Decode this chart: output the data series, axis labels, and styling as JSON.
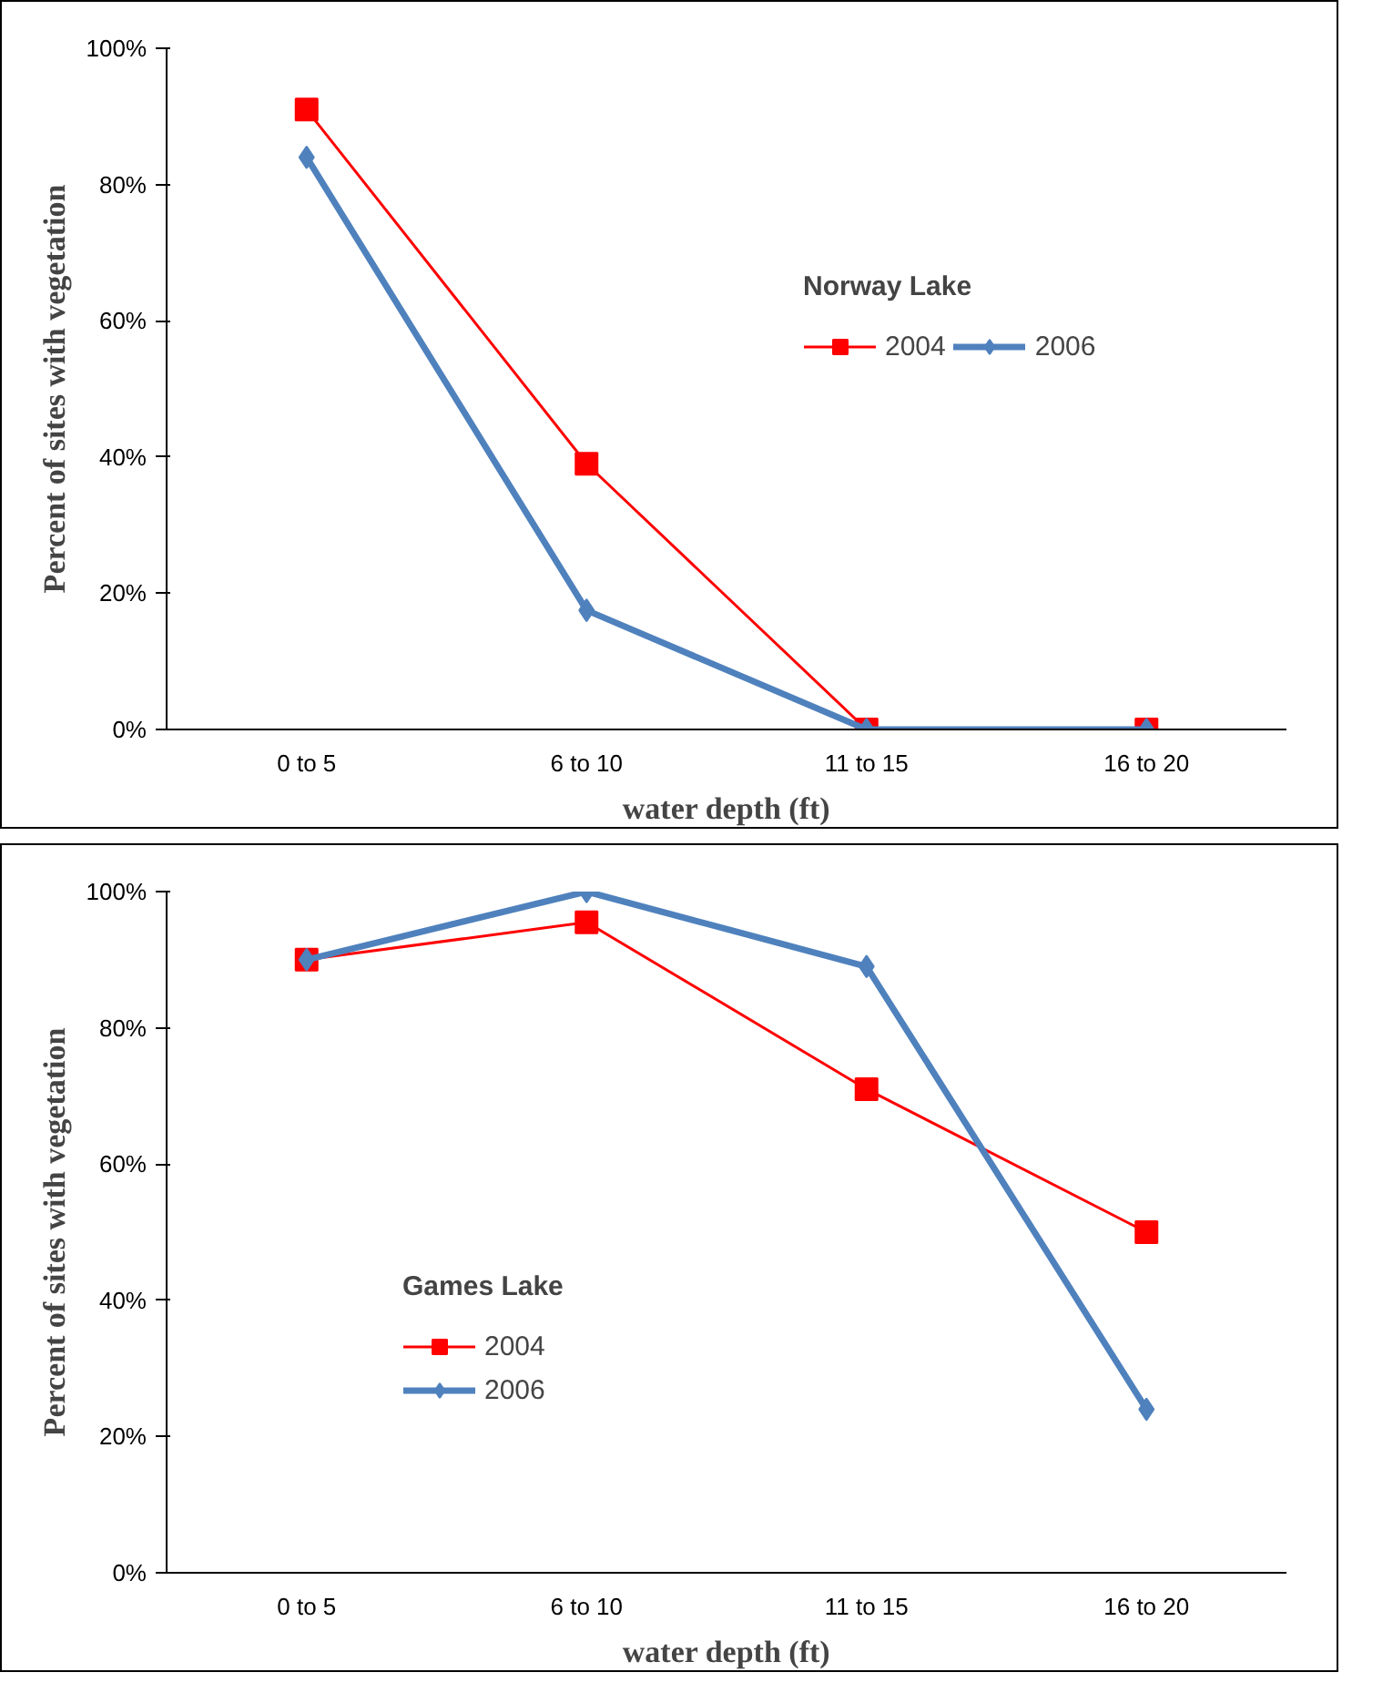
{
  "chart_data": [
    {
      "type": "line",
      "legend_title": "Norway Lake",
      "xlabel": "water depth (ft)",
      "ylabel": "Percent of sites with vegetation",
      "categories": [
        "0 to 5",
        "6 to 10",
        "11 to 15",
        "16 to 20"
      ],
      "series": [
        {
          "name": "2004",
          "color": "#ff0000",
          "marker": "square",
          "values": [
            91,
            39,
            0,
            0
          ]
        },
        {
          "name": "2006",
          "color": "#4f81bd",
          "marker": "diamond",
          "values": [
            84,
            17.5,
            0,
            0
          ]
        }
      ],
      "ylim": [
        0,
        100
      ],
      "yticks": [
        {
          "value": 0,
          "label": "0%"
        },
        {
          "value": 20,
          "label": "20%"
        },
        {
          "value": 40,
          "label": "40%"
        },
        {
          "value": 60,
          "label": "60%"
        },
        {
          "value": 80,
          "label": "80%"
        },
        {
          "value": 100,
          "label": "100%"
        }
      ],
      "grid": false,
      "legend": "right"
    },
    {
      "type": "line",
      "legend_title": "Games Lake",
      "xlabel": "water depth (ft)",
      "ylabel": "Percent of sites with vegetation",
      "categories": [
        "0 to 5",
        "6 to 10",
        "11 to 15",
        "16 to 20"
      ],
      "series": [
        {
          "name": "2004",
          "color": "#ff0000",
          "marker": "square",
          "values": [
            90,
            95.5,
            71,
            50
          ]
        },
        {
          "name": "2006",
          "color": "#4f81bd",
          "marker": "diamond",
          "values": [
            90,
            100,
            89,
            24
          ]
        }
      ],
      "ylim": [
        0,
        100
      ],
      "yticks": [
        {
          "value": 0,
          "label": "0%"
        },
        {
          "value": 20,
          "label": "20%"
        },
        {
          "value": 40,
          "label": "40%"
        },
        {
          "value": 60,
          "label": "60%"
        },
        {
          "value": 80,
          "label": "80%"
        },
        {
          "value": 100,
          "label": "100%"
        }
      ],
      "grid": false,
      "legend": "left"
    }
  ]
}
